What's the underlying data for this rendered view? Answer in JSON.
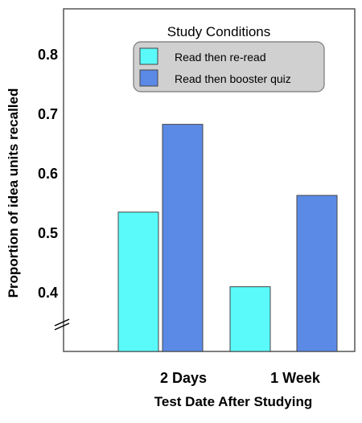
{
  "chart_data": {
    "type": "bar",
    "title": "",
    "xlabel": "Test Date After Studying",
    "ylabel": "Proportion of idea units recalled",
    "categories": [
      "2 Days",
      "1 Week"
    ],
    "series": [
      {
        "name": "Read then re-read",
        "values": [
          0.535,
          0.41
        ],
        "color": "#5afafa"
      },
      {
        "name": "Read then booster quiz",
        "values": [
          0.682,
          0.563
        ],
        "color": "#5b8ae6"
      }
    ],
    "ylim": [
      0.3,
      0.87
    ],
    "yticks": [
      "0.4",
      "0.5",
      "0.6",
      "0.7",
      "0.8"
    ],
    "axis_break": true,
    "grid": false,
    "legend": {
      "title": "Study Conditions",
      "placement": "top-right"
    }
  }
}
